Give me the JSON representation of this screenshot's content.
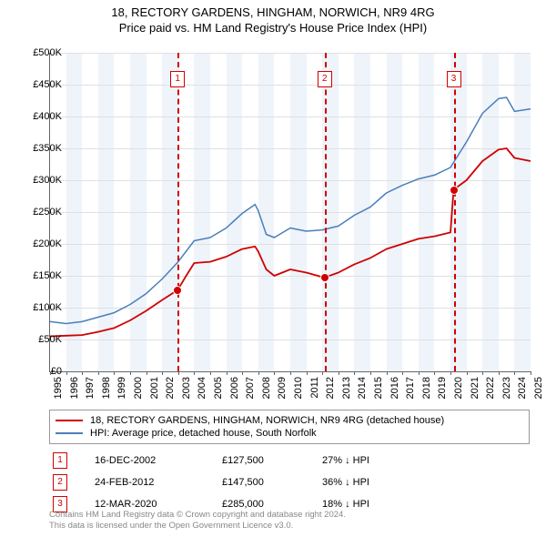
{
  "title": {
    "line1": "18, RECTORY GARDENS, HINGHAM, NORWICH, NR9 4RG",
    "line2": "Price paid vs. HM Land Registry's House Price Index (HPI)"
  },
  "chart": {
    "type": "line",
    "background_color": "#ffffff",
    "band_color": "#eef4fa",
    "grid_color": "#e0e0e0",
    "axis_color": "#666666",
    "ylim": [
      0,
      500000
    ],
    "ytick_step": 50000,
    "ylabels": [
      "£0",
      "£50K",
      "£100K",
      "£150K",
      "£200K",
      "£250K",
      "£300K",
      "£350K",
      "£400K",
      "£450K",
      "£500K"
    ],
    "xlabels": [
      "1995",
      "1996",
      "1997",
      "1998",
      "1999",
      "2000",
      "2001",
      "2002",
      "2003",
      "2004",
      "2005",
      "2006",
      "2007",
      "2008",
      "2009",
      "2010",
      "2011",
      "2012",
      "2013",
      "2014",
      "2015",
      "2016",
      "2017",
      "2018",
      "2019",
      "2020",
      "2021",
      "2022",
      "2023",
      "2024",
      "2025"
    ],
    "series": [
      {
        "name": "18, RECTORY GARDENS, HINGHAM, NORWICH, NR9 4RG (detached house)",
        "color": "#d00000",
        "width": 1.8,
        "points": [
          [
            0,
            55000
          ],
          [
            1,
            56000
          ],
          [
            2,
            57000
          ],
          [
            3,
            62000
          ],
          [
            4,
            68000
          ],
          [
            5,
            80000
          ],
          [
            6,
            95000
          ],
          [
            7,
            112000
          ],
          [
            7.96,
            127500
          ],
          [
            8.5,
            150000
          ],
          [
            9,
            170000
          ],
          [
            10,
            172000
          ],
          [
            11,
            180000
          ],
          [
            12,
            192000
          ],
          [
            12.8,
            196000
          ],
          [
            13,
            188000
          ],
          [
            13.5,
            160000
          ],
          [
            14,
            150000
          ],
          [
            15,
            160000
          ],
          [
            16,
            155000
          ],
          [
            17,
            148000
          ],
          [
            17.15,
            147500
          ],
          [
            18,
            155000
          ],
          [
            19,
            168000
          ],
          [
            20,
            178000
          ],
          [
            21,
            192000
          ],
          [
            22,
            200000
          ],
          [
            23,
            208000
          ],
          [
            24,
            212000
          ],
          [
            25,
            218000
          ],
          [
            25.2,
            285000
          ],
          [
            26,
            300000
          ],
          [
            27,
            330000
          ],
          [
            28,
            348000
          ],
          [
            28.5,
            350000
          ],
          [
            29,
            335000
          ],
          [
            30,
            330000
          ]
        ]
      },
      {
        "name": "HPI: Average price, detached house, South Norfolk",
        "color": "#4a7ebb",
        "width": 1.5,
        "points": [
          [
            0,
            78000
          ],
          [
            1,
            75000
          ],
          [
            2,
            78000
          ],
          [
            3,
            85000
          ],
          [
            4,
            92000
          ],
          [
            5,
            105000
          ],
          [
            6,
            122000
          ],
          [
            7,
            145000
          ],
          [
            8,
            172000
          ],
          [
            9,
            205000
          ],
          [
            10,
            210000
          ],
          [
            11,
            225000
          ],
          [
            12,
            248000
          ],
          [
            12.8,
            262000
          ],
          [
            13,
            252000
          ],
          [
            13.5,
            215000
          ],
          [
            14,
            210000
          ],
          [
            15,
            225000
          ],
          [
            16,
            220000
          ],
          [
            17,
            222000
          ],
          [
            18,
            228000
          ],
          [
            19,
            245000
          ],
          [
            20,
            258000
          ],
          [
            21,
            280000
          ],
          [
            22,
            292000
          ],
          [
            23,
            302000
          ],
          [
            24,
            308000
          ],
          [
            25,
            320000
          ],
          [
            26,
            360000
          ],
          [
            27,
            405000
          ],
          [
            28,
            428000
          ],
          [
            28.5,
            430000
          ],
          [
            29,
            408000
          ],
          [
            30,
            412000
          ]
        ]
      }
    ],
    "markers": [
      {
        "num": "1",
        "x": 7.96,
        "y": 127500,
        "top_y": 20
      },
      {
        "num": "2",
        "x": 17.15,
        "y": 147500,
        "top_y": 20
      },
      {
        "num": "3",
        "x": 25.2,
        "y": 285000,
        "top_y": 20
      }
    ],
    "marker_box_color": "#d00000",
    "dot_fill": "#d00000"
  },
  "legend": {
    "items": [
      {
        "color": "#d00000",
        "label": "18, RECTORY GARDENS, HINGHAM, NORWICH, NR9 4RG (detached house)"
      },
      {
        "color": "#4a7ebb",
        "label": "HPI: Average price, detached house, South Norfolk"
      }
    ]
  },
  "sales": [
    {
      "num": "1",
      "date": "16-DEC-2002",
      "price": "£127,500",
      "diff": "27% ↓ HPI"
    },
    {
      "num": "2",
      "date": "24-FEB-2012",
      "price": "£147,500",
      "diff": "36% ↓ HPI"
    },
    {
      "num": "3",
      "date": "12-MAR-2020",
      "price": "£285,000",
      "diff": "18% ↓ HPI"
    }
  ],
  "footer": {
    "line1": "Contains HM Land Registry data © Crown copyright and database right 2024.",
    "line2": "This data is licensed under the Open Government Licence v3.0."
  }
}
